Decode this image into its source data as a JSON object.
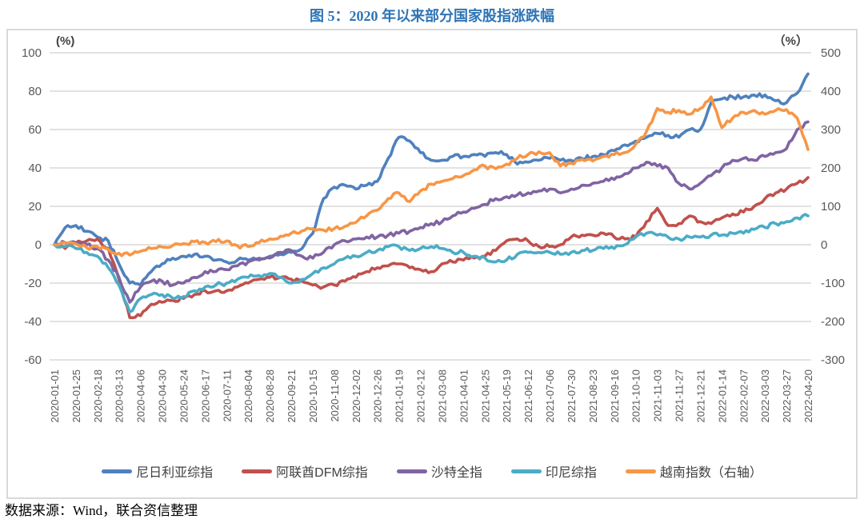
{
  "title": "图 5：2020 年以来部分国家股指涨跌幅",
  "source": "数据来源：Wind，联合资信整理",
  "colors": {
    "title_text": "#2E74B5",
    "axis_text": "#595959",
    "unit_text": "#404040",
    "legend_text": "#404040",
    "grid": "#D9D9D9",
    "frame_border": "#D9D9D9"
  },
  "chart_data": {
    "type": "line",
    "title": "图 5：2020 年以来部分国家股指涨跌幅",
    "legend_position": "bottom",
    "grid": true,
    "left_axis": {
      "label": "(%)",
      "min": -60,
      "max": 100,
      "ticks": [
        100,
        80,
        60,
        40,
        20,
        0,
        -20,
        -40,
        -60
      ]
    },
    "right_axis": {
      "label": "（%）",
      "min": -300,
      "max": 500,
      "ticks": [
        500,
        400,
        300,
        200,
        100,
        0,
        -100,
        -200,
        -300
      ]
    },
    "x_tick_labels": [
      "2020-01-01",
      "2020-01-25",
      "2020-02-18",
      "2020-03-13",
      "2020-04-06",
      "2020-04-30",
      "2020-05-24",
      "2020-06-17",
      "2020-07-11",
      "2020-08-04",
      "2020-08-28",
      "2020-09-21",
      "2020-10-15",
      "2020-11-08",
      "2020-12-02",
      "2020-12-26",
      "2021-01-19",
      "2021-02-12",
      "2021-03-08",
      "2021-04-01",
      "2021-04-25",
      "2021-05-19",
      "2021-06-12",
      "2021-07-06",
      "2021-07-30",
      "2021-08-23",
      "2021-09-16",
      "2021-10-10",
      "2021-11-03",
      "2021-11-27",
      "2021-12-21",
      "2022-01-14",
      "2022-02-07",
      "2022-03-03",
      "2022-03-27",
      "2022-04-20"
    ],
    "x_samples_per_tick": 2,
    "series": [
      {
        "name": "尼日利亚综指",
        "color": "#4F81BD",
        "axis": "left",
        "values": [
          0,
          9,
          10,
          7,
          4,
          2,
          -10,
          -20,
          -21,
          -14,
          -10,
          -7,
          -6,
          -5,
          -6,
          -8,
          -9,
          -8,
          -8,
          -7,
          -6,
          -5,
          -4,
          -2,
          6,
          24,
          30,
          31,
          29,
          31,
          33,
          45,
          56,
          54,
          48,
          44,
          44,
          46,
          46,
          47,
          46,
          48,
          47,
          42,
          43,
          44,
          45,
          44,
          44,
          45,
          46,
          47,
          49,
          52,
          54,
          56,
          58,
          57,
          56,
          60,
          60,
          74,
          76,
          77,
          77,
          78,
          78,
          75,
          74,
          79,
          89
        ]
      },
      {
        "name": "阿联酋DFM综指",
        "color": "#C0504D",
        "axis": "left",
        "values": [
          0,
          -2,
          1,
          2,
          3,
          -2,
          -18,
          -38,
          -37,
          -31,
          -30,
          -29,
          -28,
          -26,
          -24,
          -24,
          -24,
          -22,
          -20,
          -18,
          -17,
          -17,
          -18,
          -19,
          -21,
          -22,
          -21,
          -19,
          -17,
          -14,
          -12,
          -11,
          -10,
          -12,
          -13,
          -14,
          -10,
          -9,
          -8,
          -7,
          -6,
          -3,
          2,
          3,
          2,
          -1,
          -1,
          0,
          4,
          5,
          5,
          6,
          4,
          3,
          4,
          12,
          19,
          10,
          11,
          15,
          12,
          11,
          14,
          16,
          17,
          20,
          24,
          27,
          29,
          32,
          35
        ]
      },
      {
        "name": "沙特全指",
        "color": "#8064A2",
        "axis": "left",
        "values": [
          0,
          1,
          1,
          0,
          -2,
          -8,
          -17,
          -30,
          -22,
          -19,
          -19,
          -21,
          -20,
          -17,
          -14,
          -14,
          -13,
          -11,
          -9,
          -8,
          -7,
          -4,
          -3,
          -6,
          -7,
          -4,
          0,
          2,
          3,
          4,
          4,
          5,
          6,
          7,
          9,
          11,
          12,
          15,
          17,
          19,
          21,
          24,
          25,
          26,
          27,
          28,
          29,
          27,
          29,
          31,
          32,
          33,
          34,
          37,
          40,
          43,
          41,
          40,
          32,
          29,
          32,
          36,
          40,
          44,
          45,
          44,
          46,
          48,
          50,
          60,
          64
        ]
      },
      {
        "name": "印尼综指",
        "color": "#4BACC6",
        "axis": "left",
        "values": [
          0,
          -1,
          -2,
          -4,
          -6,
          -12,
          -21,
          -35,
          -28,
          -26,
          -26,
          -28,
          -27,
          -24,
          -22,
          -21,
          -20,
          -18,
          -17,
          -16,
          -15,
          -17,
          -20,
          -18,
          -15,
          -12,
          -10,
          -7,
          -6,
          -4,
          -3,
          -1,
          -1,
          -3,
          -2,
          -1,
          -2,
          -4,
          -4,
          -6,
          -7,
          -9,
          -8,
          -5,
          -4,
          -4,
          -4,
          -5,
          -4,
          -3,
          -3,
          -2,
          -2,
          0,
          4,
          6,
          5,
          4,
          3,
          4,
          4,
          5,
          5,
          6,
          6,
          8,
          9,
          11,
          12,
          14,
          15
        ]
      },
      {
        "name": "越南指数（右轴）",
        "color": "#F79646",
        "axis": "right",
        "values": [
          0,
          5,
          2,
          -8,
          -5,
          -12,
          -22,
          -27,
          -17,
          -10,
          -6,
          -2,
          3,
          8,
          6,
          8,
          10,
          -3,
          -5,
          5,
          15,
          22,
          30,
          36,
          42,
          38,
          42,
          48,
          58,
          75,
          90,
          120,
          135,
          112,
          140,
          158,
          165,
          172,
          180,
          195,
          205,
          198,
          210,
          225,
          235,
          242,
          240,
          205,
          212,
          222,
          218,
          230,
          235,
          240,
          262,
          295,
          355,
          345,
          350,
          340,
          355,
          385,
          305,
          330,
          345,
          350,
          340,
          350,
          352,
          330,
          248
        ]
      }
    ]
  }
}
